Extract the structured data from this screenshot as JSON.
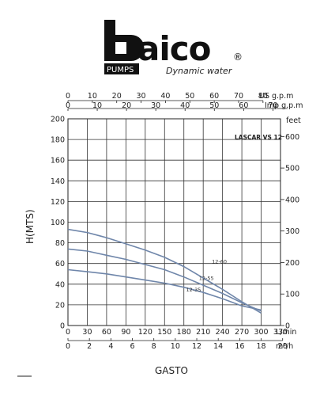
{
  "brand": {
    "name": "aico",
    "sub_label": "PUMPS",
    "tagline": "Dynamic water",
    "registered_mark": "®"
  },
  "chart_data": {
    "type": "line",
    "model_label": "LASCAR VS 12",
    "ylabel": "H(MTS)",
    "xlabel": "GASTO",
    "ylim": [
      0,
      200
    ],
    "y_ticks": [
      0,
      20,
      40,
      60,
      80,
      100,
      120,
      140,
      160,
      180,
      200
    ],
    "xlim_lmin": [
      0,
      330
    ],
    "x_ticks_lmin": [
      0,
      30,
      60,
      90,
      120,
      150,
      180,
      210,
      240,
      270,
      300,
      330
    ],
    "x_unit_lmin": "L/min",
    "x_ticks_m3h": [
      0,
      2,
      4,
      6,
      8,
      10,
      12,
      14,
      16,
      18,
      20
    ],
    "x_unit_m3h": "m³/h",
    "x_ticks_usgpm": [
      0,
      10,
      20,
      30,
      40,
      50,
      60,
      70,
      80
    ],
    "x_unit_usgpm": "US g.p.m",
    "x_ticks_impgpm": [
      0,
      10,
      20,
      30,
      40,
      50,
      60,
      70
    ],
    "x_unit_impgpm": "Imp g.p.m",
    "y2_unit": "feet",
    "y2_ticks": [
      0,
      100,
      200,
      300,
      400,
      500,
      600
    ],
    "grid": true,
    "series": [
      {
        "name": "12-60",
        "color": "#6f86aa",
        "x": [
          0,
          30,
          60,
          90,
          120,
          150,
          180,
          210,
          240,
          270,
          300
        ],
        "y": [
          93,
          90,
          85,
          79,
          73,
          66,
          57,
          46,
          35,
          23,
          12
        ]
      },
      {
        "name": "12-55",
        "color": "#6f86aa",
        "x": [
          0,
          30,
          60,
          90,
          120,
          150,
          180,
          210,
          240,
          270,
          300
        ],
        "y": [
          74,
          72,
          68,
          64,
          59,
          54,
          47,
          39,
          31,
          22,
          14
        ]
      },
      {
        "name": "12-35",
        "color": "#6f86aa",
        "x": [
          0,
          30,
          60,
          90,
          120,
          150,
          180,
          210,
          240,
          270,
          300
        ],
        "y": [
          54,
          52,
          50,
          47,
          44,
          41,
          37,
          32,
          26,
          19,
          15
        ]
      }
    ],
    "labels": [
      "12-60",
      "12-55",
      "12-35"
    ]
  }
}
